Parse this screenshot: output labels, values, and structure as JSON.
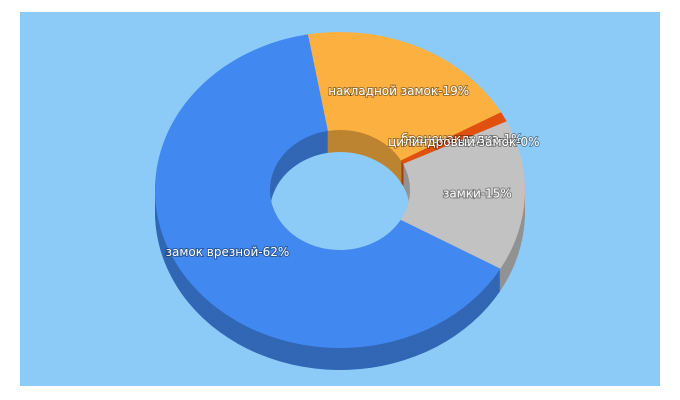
{
  "chart_data": {
    "type": "pie3d",
    "categories": [
      "накладной замок",
      "броненакладка",
      "цилиндровый замок",
      "замки",
      "замок врезной"
    ],
    "values": [
      19,
      1,
      0,
      15,
      62
    ],
    "value_labels": [
      "накладной замок-19%",
      "броненакладка-1%",
      "цилиндровый замок-0%",
      "замки-15%",
      "замок врезной-62%"
    ],
    "colors": [
      "#fbb040",
      "#e2500f",
      "#9c27b0",
      "#c2c2c2",
      "#4189f0"
    ]
  }
}
